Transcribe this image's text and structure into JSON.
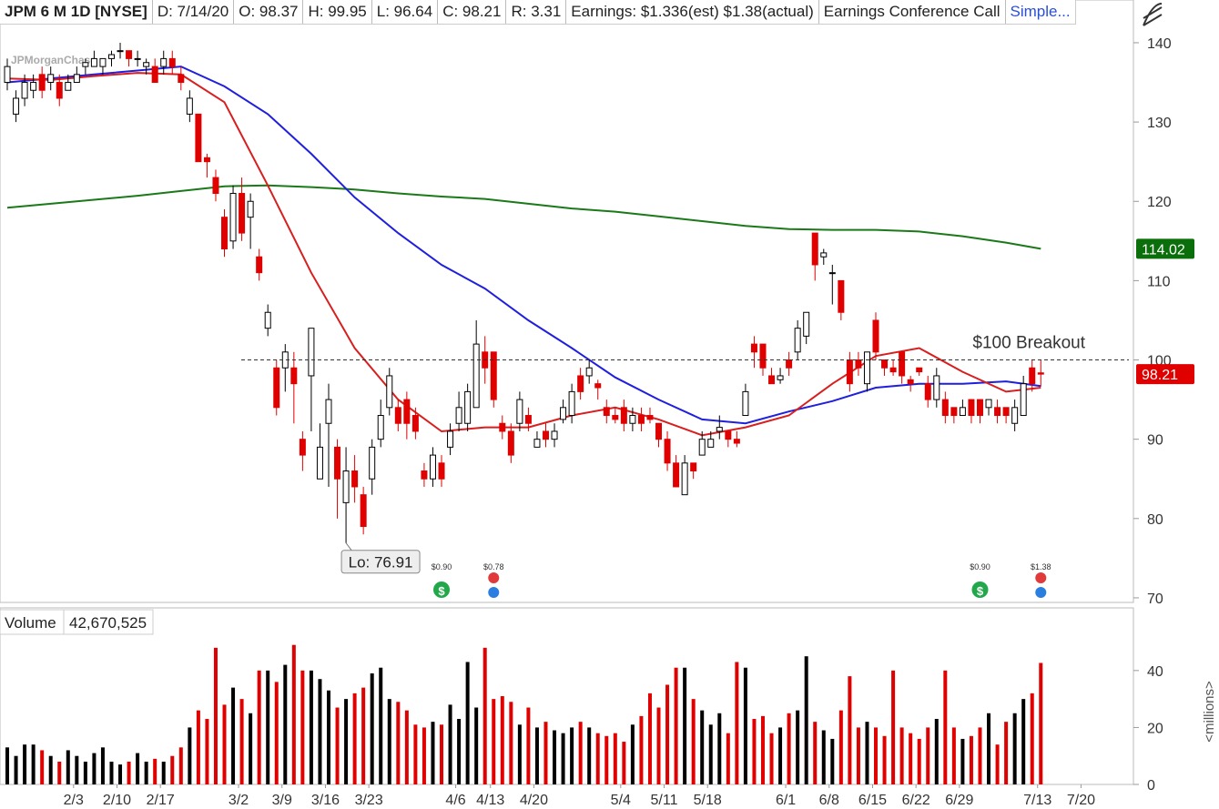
{
  "header": {
    "symbol": "JPM 6 M 1D [NYSE]",
    "date": "D: 7/14/20",
    "open": "O: 98.37",
    "high": "H: 99.95",
    "low": "L: 96.64",
    "close": "C: 98.21",
    "range": "R: 3.31",
    "earnings": "Earnings: $1.336(est) $1.38(actual)",
    "call": "Earnings Conference Call",
    "overlay": "Simple..."
  },
  "chart_data": [
    {
      "type": "candlestick",
      "watermark": "JPMorganChase",
      "xlim": [
        -0.84,
        129.14
      ],
      "ylim": [
        69.65,
        145.39
      ],
      "yticks": [
        70,
        80,
        90,
        100,
        110,
        120,
        130,
        140
      ],
      "up_color": "#000000",
      "down_color": "#e00000",
      "open": [
        135,
        131,
        133,
        134,
        136,
        135,
        135,
        134,
        135,
        137,
        137,
        137,
        138,
        139,
        139,
        138,
        137,
        137,
        137,
        138,
        136,
        131,
        131,
        125.5,
        123,
        118,
        115,
        121,
        118,
        113,
        104,
        99,
        99,
        99,
        90,
        98,
        85,
        92,
        89,
        82,
        86,
        83,
        85,
        90,
        94,
        94,
        95,
        93,
        86,
        85,
        87,
        89,
        92,
        92,
        94,
        101,
        101,
        92,
        91,
        92,
        93,
        89,
        91,
        90,
        92.5,
        93,
        98,
        98,
        97,
        94,
        93,
        94,
        92,
        93,
        93,
        92,
        90,
        87,
        83,
        87,
        88,
        89,
        91,
        91,
        90,
        93,
        102,
        102,
        98,
        97.5,
        100,
        101,
        103,
        116,
        113,
        111,
        110,
        100,
        100,
        97,
        105,
        100,
        99,
        101,
        97.5,
        99,
        97,
        95,
        95,
        94,
        93,
        95,
        95,
        94,
        94,
        94,
        92,
        93,
        99,
        98.37
      ],
      "high": [
        138,
        134,
        136,
        136,
        137,
        137,
        136,
        136,
        137,
        138,
        139,
        138,
        139,
        140,
        139,
        139,
        138,
        138,
        139,
        139,
        137,
        134,
        131,
        126,
        124,
        119,
        122,
        123,
        121,
        114,
        107,
        100,
        102,
        101,
        91,
        104,
        92,
        97,
        90,
        89,
        88,
        84,
        90,
        95,
        99,
        95,
        96,
        94,
        87,
        89,
        88,
        92,
        96,
        97,
        105,
        103,
        101,
        93,
        92,
        96,
        94,
        91,
        92,
        92,
        95,
        97,
        99,
        100,
        97.5,
        95,
        94,
        95,
        94,
        94,
        94,
        92,
        91,
        88,
        88,
        87,
        91,
        91,
        93,
        91,
        91,
        97,
        103,
        102,
        99,
        99,
        101,
        105,
        106,
        116,
        114,
        112,
        110,
        101,
        101,
        101,
        106,
        100,
        100,
        101,
        98,
        99,
        98,
        99,
        96,
        94,
        95,
        95,
        95,
        95,
        95,
        94,
        95,
        98,
        100,
        99.95
      ],
      "low": [
        134,
        130,
        132,
        133,
        133,
        134,
        132,
        134,
        135,
        136,
        137,
        136,
        137,
        138,
        137,
        137,
        136,
        135,
        136,
        136,
        134,
        130,
        125,
        123,
        120,
        113,
        114,
        115,
        114,
        110,
        103,
        93,
        96,
        92,
        86,
        91,
        85,
        84,
        80,
        76.91,
        82,
        78,
        83,
        89,
        93,
        91,
        90,
        90,
        84,
        84,
        84,
        88,
        91,
        91,
        94,
        97,
        94,
        90,
        87,
        91,
        91,
        89,
        89,
        89,
        92,
        92,
        95,
        97,
        95,
        92,
        92,
        91,
        91,
        91,
        92,
        89,
        86,
        84,
        83,
        85,
        88,
        89,
        90,
        89,
        89,
        93,
        99,
        98,
        97,
        97,
        98,
        100,
        102,
        110,
        112,
        107,
        105,
        96,
        98,
        96,
        100,
        98,
        98,
        97,
        96,
        98,
        94,
        94,
        92,
        92,
        93,
        92,
        92,
        93,
        92,
        92,
        91,
        93,
        96,
        96.64
      ],
      "close": [
        137,
        133,
        135,
        135,
        134,
        136,
        133,
        135,
        136,
        137.5,
        138,
        138,
        138.5,
        139,
        138,
        138,
        137.5,
        135,
        138,
        137,
        135,
        133,
        125,
        125,
        121,
        114,
        121,
        116,
        120,
        111,
        106,
        94,
        101,
        97,
        88,
        104,
        89,
        95,
        85,
        86,
        84,
        79,
        89,
        93,
        98,
        92,
        92,
        91,
        85,
        88,
        85,
        91,
        94,
        96,
        102,
        99,
        95,
        91,
        88,
        95,
        92,
        90,
        90,
        91,
        94,
        96,
        96,
        99,
        96.5,
        93,
        92.5,
        92,
        93,
        92,
        92.5,
        90,
        87,
        84,
        87,
        86,
        90,
        90,
        91.5,
        90,
        89.5,
        96,
        101,
        99,
        97,
        98,
        99,
        104,
        106,
        112,
        113.5,
        111,
        106,
        97,
        99,
        101,
        101,
        99,
        98.5,
        98,
        97,
        98.5,
        95,
        98,
        93,
        93,
        94,
        93,
        93,
        95,
        93,
        93,
        94,
        97,
        97,
        98.21
      ],
      "ma_x": [
        0,
        5,
        10,
        15,
        20,
        25,
        30,
        35,
        40,
        45,
        50,
        55,
        60,
        65,
        70,
        75,
        80,
        85,
        90,
        95,
        100,
        105,
        110,
        115,
        119
      ],
      "series": [
        {
          "color": "#1a7a1a",
          "values": [
            119.2,
            119.7,
            120.2,
            120.7,
            121.3,
            121.9,
            122.0,
            121.8,
            121.5,
            121.0,
            120.6,
            120.3,
            119.7,
            119.1,
            118.7,
            118.1,
            117.5,
            116.9,
            116.5,
            116.4,
            116.4,
            116.2,
            115.6,
            114.8,
            114.02
          ]
        },
        {
          "color": "#1f1fdd",
          "values": [
            135,
            135.5,
            136,
            136.5,
            137,
            134.5,
            131,
            126,
            120.5,
            116,
            112,
            109,
            105,
            101.5,
            97.8,
            95,
            92.5,
            92,
            93.5,
            94.8,
            96.5,
            97,
            97,
            97.3,
            96.7
          ]
        },
        {
          "color": "#d81e1e",
          "values": [
            135.5,
            135.3,
            135.8,
            136.2,
            136.0,
            132.5,
            122,
            111,
            101.5,
            95,
            91,
            91.5,
            91.5,
            93,
            94,
            92.5,
            90.5,
            91.5,
            93,
            97,
            100.5,
            101.5,
            98.5,
            96,
            96.5
          ]
        }
      ],
      "hline": {
        "value": 100,
        "label": "$100 Breakout"
      },
      "low_label": "Lo: 76.91",
      "price_tags": [
        {
          "value": 114.02,
          "color": "#0a6e0a"
        },
        {
          "value": 98.21,
          "color": "#e00000"
        }
      ],
      "events": [
        {
          "kind": "dividend",
          "label": "$0.90",
          "at": 50
        },
        {
          "kind": "earnings",
          "label": "$0.78",
          "at": 56
        },
        {
          "kind": "dividend",
          "label": "$0.90",
          "at": 112
        },
        {
          "kind": "earnings",
          "label": "$1.38",
          "at": 119
        }
      ]
    },
    {
      "type": "bar",
      "title": "Volume",
      "volume_label": "42,670,525",
      "axis_label": "<millions>",
      "xlim": [
        -0.84,
        129.14
      ],
      "ylim": [
        0,
        62
      ],
      "yticks": [
        0,
        20,
        40
      ],
      "values": [
        13,
        10,
        14,
        14,
        12,
        10,
        8,
        12,
        10,
        8,
        11,
        13,
        8,
        7,
        8,
        11,
        8,
        9,
        8,
        10,
        13,
        20,
        26,
        23,
        48,
        28,
        34,
        30,
        25,
        40,
        40,
        36,
        42,
        49,
        40,
        40,
        37,
        33,
        27,
        30,
        32,
        34,
        39,
        41,
        30,
        29,
        26,
        21,
        20,
        22,
        21,
        28,
        23,
        43,
        27,
        48,
        30,
        31,
        29,
        21,
        27,
        20,
        22,
        19,
        18,
        20,
        22,
        20,
        18,
        17,
        18,
        15,
        21,
        24,
        32,
        27,
        35,
        41,
        41,
        30,
        26,
        21,
        25,
        18,
        43,
        41,
        23,
        24,
        18,
        20,
        25,
        26,
        45,
        22,
        19,
        16,
        26,
        38,
        20,
        22,
        20,
        17,
        40,
        20,
        18,
        16,
        20,
        23,
        40,
        20,
        16,
        17,
        20,
        25,
        14,
        22,
        25,
        30,
        32,
        42.670525
      ],
      "xticks": [
        {
          "value": 7,
          "label": "2/3"
        },
        {
          "value": 12,
          "label": "2/10"
        },
        {
          "value": 17,
          "label": "2/17"
        },
        {
          "value": 26,
          "label": "3/2"
        },
        {
          "value": 31,
          "label": "3/9"
        },
        {
          "value": 36,
          "label": "3/16"
        },
        {
          "value": 41,
          "label": "3/23"
        },
        {
          "value": 51,
          "label": "4/6"
        },
        {
          "value": 55,
          "label": "4/13"
        },
        {
          "value": 60,
          "label": "4/20"
        },
        {
          "value": 70,
          "label": "5/4"
        },
        {
          "value": 75,
          "label": "5/11"
        },
        {
          "value": 80,
          "label": "5/18"
        },
        {
          "value": 89,
          "label": "6/1"
        },
        {
          "value": 94,
          "label": "6/8"
        },
        {
          "value": 99,
          "label": "6/15"
        },
        {
          "value": 104,
          "label": "6/22"
        },
        {
          "value": 109,
          "label": "6/29"
        },
        {
          "value": 118,
          "label": "7/13"
        },
        {
          "value": 123,
          "label": "7/20"
        }
      ]
    }
  ]
}
